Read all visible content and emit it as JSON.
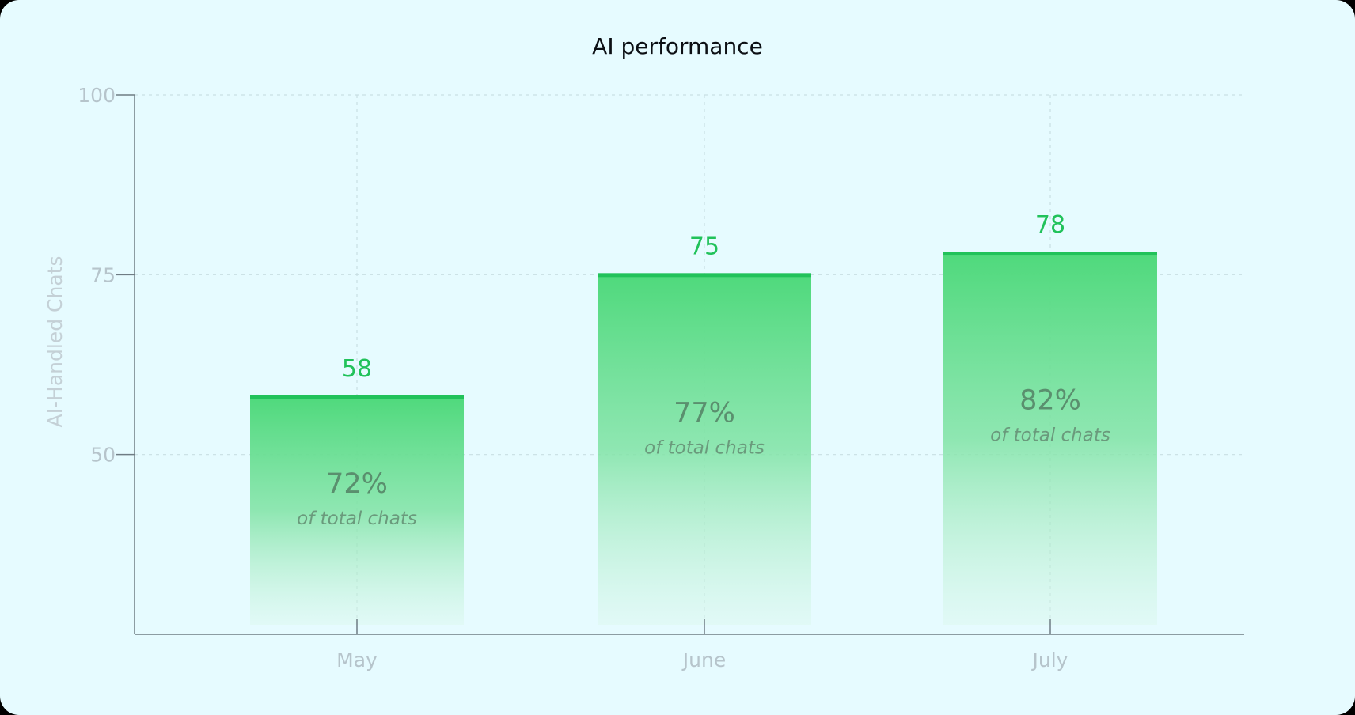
{
  "chart_data": {
    "type": "bar",
    "title": "AI performance",
    "xlabel": "",
    "ylabel": "AI-Handled Chats",
    "categories": [
      "May",
      "June",
      "July"
    ],
    "values": [
      58,
      75,
      78
    ],
    "share_of_total": [
      "72%",
      "77%",
      "82%"
    ],
    "share_caption": "of total chats",
    "y_ticks": [
      "50",
      "75",
      "100"
    ],
    "ylim": [
      25,
      100
    ],
    "grid": true,
    "bar_color": "#21c25a"
  }
}
